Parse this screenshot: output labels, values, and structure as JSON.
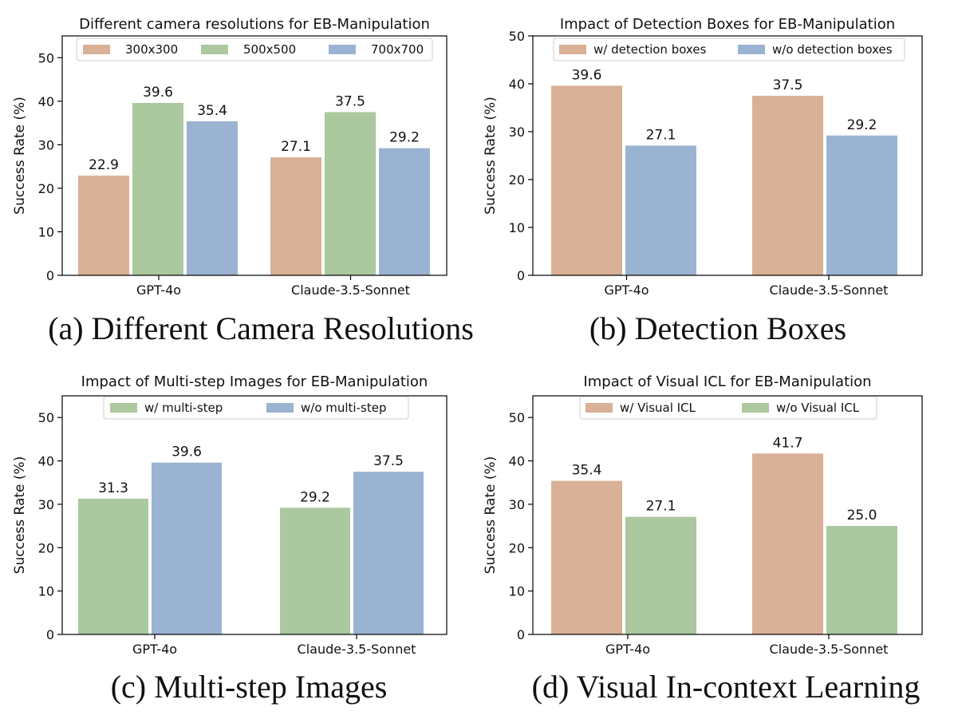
{
  "colors": {
    "orange": "#d8b196",
    "green": "#abc89e",
    "blue": "#9bb3d2",
    "axis": "#000000",
    "legend_border": "#cccccc"
  },
  "chart_data": [
    {
      "id": "a",
      "type": "bar",
      "title": "Different camera resolutions for EB-Manipulation",
      "caption": "(a) Different Camera Resolutions",
      "xlabel": "",
      "ylabel": "Success Rate (%)",
      "ylim": [
        0,
        55
      ],
      "yticks": [
        0,
        10,
        20,
        30,
        40,
        50
      ],
      "categories": [
        "GPT-4o",
        "Claude-3.5-Sonnet"
      ],
      "legend_position": "top-center",
      "series": [
        {
          "name": "300x300",
          "color": "orange",
          "values": [
            22.9,
            27.1
          ],
          "labels": [
            "22.9",
            "27.1"
          ]
        },
        {
          "name": "500x500",
          "color": "green",
          "values": [
            39.6,
            37.5
          ],
          "labels": [
            "39.6",
            "37.5"
          ]
        },
        {
          "name": "700x700",
          "color": "blue",
          "values": [
            35.4,
            29.2
          ],
          "labels": [
            "35.4",
            "29.2"
          ]
        }
      ]
    },
    {
      "id": "b",
      "type": "bar",
      "title": "Impact of Detection Boxes for EB-Manipulation",
      "caption": "(b) Detection Boxes",
      "xlabel": "",
      "ylabel": "Success Rate (%)",
      "ylim": [
        0,
        50
      ],
      "yticks": [
        0,
        10,
        20,
        30,
        40,
        50
      ],
      "categories": [
        "GPT-4o",
        "Claude-3.5-Sonnet"
      ],
      "legend_position": "top-center",
      "series": [
        {
          "name": "w/ detection boxes",
          "color": "orange",
          "values": [
            39.6,
            37.5
          ],
          "labels": [
            "39.6",
            "37.5"
          ]
        },
        {
          "name": "w/o detection boxes",
          "color": "blue",
          "values": [
            27.1,
            29.2
          ],
          "labels": [
            "27.1",
            "29.2"
          ]
        }
      ]
    },
    {
      "id": "c",
      "type": "bar",
      "title": "Impact of Multi-step Images for EB-Manipulation",
      "caption": "(c) Multi-step Images",
      "xlabel": "",
      "ylabel": "Success Rate (%)",
      "ylim": [
        0,
        55
      ],
      "yticks": [
        0,
        10,
        20,
        30,
        40,
        50
      ],
      "categories": [
        "GPT-4o",
        "Claude-3.5-Sonnet"
      ],
      "legend_position": "top-center",
      "series": [
        {
          "name": "w/ multi-step",
          "color": "green",
          "values": [
            31.3,
            29.2
          ],
          "labels": [
            "31.3",
            "29.2"
          ]
        },
        {
          "name": "w/o multi-step",
          "color": "blue",
          "values": [
            39.6,
            37.5
          ],
          "labels": [
            "39.6",
            "37.5"
          ]
        }
      ]
    },
    {
      "id": "d",
      "type": "bar",
      "title": "Impact of Visual ICL for EB-Manipulation",
      "caption": "(d) Visual In-context Learning",
      "xlabel": "",
      "ylabel": "Success Rate (%)",
      "ylim": [
        0,
        55
      ],
      "yticks": [
        0,
        10,
        20,
        30,
        40,
        50
      ],
      "categories": [
        "GPT-4o",
        "Claude-3.5-Sonnet"
      ],
      "legend_position": "top-center",
      "series": [
        {
          "name": "w/ Visual ICL",
          "color": "orange",
          "values": [
            35.4,
            41.7
          ],
          "labels": [
            "35.4",
            "41.7"
          ]
        },
        {
          "name": "w/o Visual ICL",
          "color": "green",
          "values": [
            27.1,
            25.0
          ],
          "labels": [
            "27.1",
            "25.0"
          ]
        }
      ]
    }
  ]
}
